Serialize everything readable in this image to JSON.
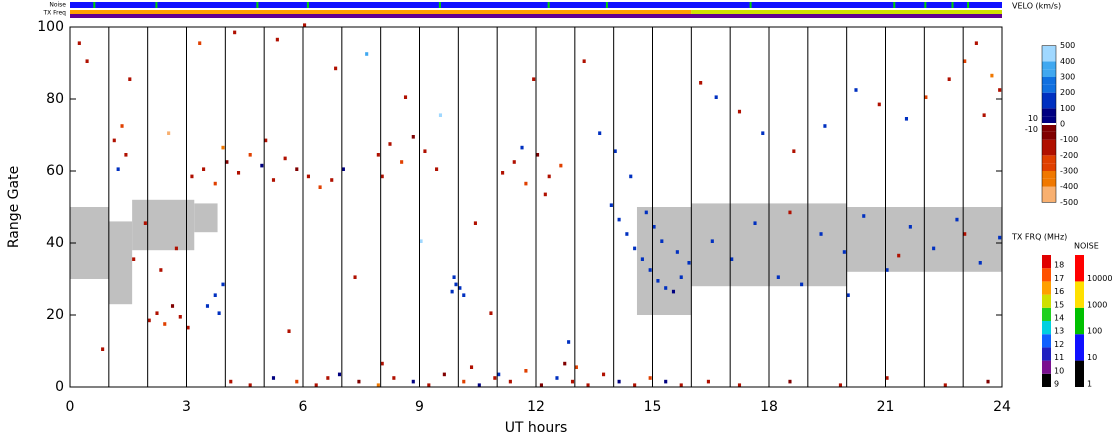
{
  "chart_data": {
    "type": "range-time",
    "xlabel": "UT hours",
    "ylabel": "Range Gate",
    "xlim": [
      0,
      24
    ],
    "ylim": [
      0,
      100
    ],
    "xticks": [
      0,
      3,
      6,
      9,
      12,
      15,
      18,
      21,
      24
    ],
    "yticks": [
      0,
      20,
      40,
      60,
      80,
      100
    ],
    "vlines": [
      1,
      2,
      3,
      4,
      5,
      6,
      7,
      8,
      9,
      10,
      11,
      12,
      13,
      14,
      15,
      16,
      17,
      18,
      19,
      20,
      21,
      22,
      23
    ],
    "ground_scatter_color": "#c0c0c0",
    "ground_scatter": [
      {
        "x": [
          0,
          1.0
        ],
        "y": [
          30,
          50
        ]
      },
      {
        "x": [
          1.0,
          1.6
        ],
        "y": [
          23,
          46
        ]
      },
      {
        "x": [
          1.6,
          3.2
        ],
        "y": [
          38,
          52
        ]
      },
      {
        "x": [
          3.2,
          3.8
        ],
        "y": [
          43,
          51
        ]
      },
      {
        "x": [
          14.6,
          16
        ],
        "y": [
          20,
          50
        ]
      },
      {
        "x": [
          16,
          20
        ],
        "y": [
          28,
          51
        ]
      },
      {
        "x": [
          20,
          24
        ],
        "y": [
          32,
          50
        ]
      }
    ],
    "cells": [
      [
        4.1,
        1,
        -150
      ],
      [
        4.6,
        0,
        -100
      ],
      [
        5.2,
        2,
        80
      ],
      [
        5.8,
        1,
        -200
      ],
      [
        6.3,
        0,
        -120
      ],
      [
        6.9,
        3,
        60
      ],
      [
        7.4,
        1,
        -90
      ],
      [
        7.9,
        0,
        -300
      ],
      [
        8.3,
        2,
        -110
      ],
      [
        8.8,
        1,
        90
      ],
      [
        9.2,
        0,
        -150
      ],
      [
        9.6,
        3,
        -80
      ],
      [
        10.1,
        1,
        -200
      ],
      [
        10.5,
        0,
        70
      ],
      [
        10.9,
        2,
        -130
      ],
      [
        11.3,
        1,
        -100
      ],
      [
        11.7,
        4,
        -250
      ],
      [
        12.1,
        0,
        -90
      ],
      [
        12.5,
        2,
        100
      ],
      [
        12.9,
        1,
        -140
      ],
      [
        13.3,
        0,
        -110
      ],
      [
        13.7,
        3,
        -180
      ],
      [
        14.1,
        1,
        80
      ],
      [
        14.5,
        0,
        -120
      ],
      [
        14.9,
        2,
        -200
      ],
      [
        15.3,
        1,
        90
      ],
      [
        15.7,
        0,
        -100
      ],
      [
        16.4,
        1,
        -150
      ],
      [
        17.2,
        0,
        -120
      ],
      [
        18.5,
        1,
        -90
      ],
      [
        19.8,
        0,
        -130
      ],
      [
        21.0,
        2,
        -100
      ],
      [
        22.5,
        0,
        -110
      ],
      [
        23.6,
        1,
        -90
      ],
      [
        8.0,
        6,
        -120
      ],
      [
        10.3,
        5,
        -160
      ],
      [
        12.7,
        6,
        -90
      ],
      [
        6.6,
        2,
        -140
      ],
      [
        11.0,
        3,
        120
      ],
      [
        13.0,
        5,
        -210
      ],
      [
        3.1,
        58,
        -150
      ],
      [
        3.4,
        60,
        -100
      ],
      [
        3.7,
        56,
        -200
      ],
      [
        4.0,
        62,
        -90
      ],
      [
        4.3,
        59,
        -130
      ],
      [
        4.6,
        64,
        -250
      ],
      [
        4.9,
        61,
        80
      ],
      [
        5.2,
        57,
        -110
      ],
      [
        5.5,
        63,
        -160
      ],
      [
        5.8,
        60,
        -90
      ],
      [
        6.1,
        58,
        -140
      ],
      [
        6.4,
        55,
        -200
      ],
      [
        6.7,
        57,
        -100
      ],
      [
        7.0,
        60,
        60
      ],
      [
        3.9,
        66,
        -300
      ],
      [
        5.0,
        68,
        -120
      ],
      [
        7.9,
        64,
        -150
      ],
      [
        8.2,
        67,
        -100
      ],
      [
        8.5,
        62,
        -200
      ],
      [
        8.8,
        69,
        -90
      ],
      [
        9.1,
        65,
        -130
      ],
      [
        9.4,
        60,
        -180
      ],
      [
        8.0,
        58,
        -120
      ],
      [
        11.1,
        59,
        -150
      ],
      [
        11.4,
        62,
        -100
      ],
      [
        11.7,
        56,
        -200
      ],
      [
        12.0,
        64,
        -90
      ],
      [
        12.3,
        58,
        -130
      ],
      [
        12.6,
        61,
        -250
      ],
      [
        11.6,
        66,
        110
      ],
      [
        12.2,
        53,
        -160
      ],
      [
        13.9,
        50,
        150
      ],
      [
        14.1,
        46,
        120
      ],
      [
        14.3,
        42,
        180
      ],
      [
        14.5,
        38,
        130
      ],
      [
        14.7,
        35,
        100
      ],
      [
        14.9,
        32,
        160
      ],
      [
        15.1,
        29,
        140
      ],
      [
        15.3,
        27,
        120
      ],
      [
        15.5,
        26,
        90
      ],
      [
        15.7,
        30,
        150
      ],
      [
        15.9,
        34,
        130
      ],
      [
        14.0,
        65,
        110
      ],
      [
        14.4,
        58,
        140
      ],
      [
        14.8,
        48,
        170
      ],
      [
        15.2,
        40,
        120
      ],
      [
        15.6,
        37,
        100
      ],
      [
        15.0,
        44,
        130
      ],
      [
        9.8,
        26,
        140
      ],
      [
        9.9,
        28,
        160
      ],
      [
        10.0,
        27,
        120
      ],
      [
        10.1,
        25,
        150
      ],
      [
        9.85,
        30,
        110
      ],
      [
        2.0,
        18,
        -150
      ],
      [
        2.2,
        20,
        -120
      ],
      [
        2.4,
        17,
        -200
      ],
      [
        2.6,
        22,
        -90
      ],
      [
        2.8,
        19,
        -130
      ],
      [
        3.0,
        16,
        -180
      ],
      [
        1.6,
        35,
        -140
      ],
      [
        1.9,
        45,
        -120
      ],
      [
        2.3,
        32,
        -160
      ],
      [
        2.7,
        38,
        -100
      ],
      [
        3.5,
        22,
        140
      ],
      [
        3.7,
        25,
        120
      ],
      [
        3.9,
        28,
        160
      ],
      [
        3.8,
        20,
        110
      ],
      [
        1.1,
        68,
        -150
      ],
      [
        1.3,
        72,
        -200
      ],
      [
        1.4,
        64,
        -120
      ],
      [
        1.2,
        60,
        110
      ],
      [
        0.2,
        95,
        -130
      ],
      [
        0.4,
        90,
        -180
      ],
      [
        16.5,
        40,
        130
      ],
      [
        17.0,
        35,
        110
      ],
      [
        17.6,
        45,
        150
      ],
      [
        18.2,
        30,
        120
      ],
      [
        18.8,
        28,
        160
      ],
      [
        19.3,
        42,
        100
      ],
      [
        19.9,
        37,
        140
      ],
      [
        20.4,
        47,
        130
      ],
      [
        21.0,
        32,
        110
      ],
      [
        21.6,
        44,
        150
      ],
      [
        22.2,
        38,
        120
      ],
      [
        22.8,
        46,
        100
      ],
      [
        23.4,
        34,
        140
      ],
      [
        23.9,
        41,
        130
      ],
      [
        20.0,
        25,
        120
      ],
      [
        18.5,
        48,
        -150
      ],
      [
        21.3,
        36,
        -120
      ],
      [
        23.0,
        42,
        -110
      ],
      [
        16.2,
        84,
        -130
      ],
      [
        16.6,
        80,
        120
      ],
      [
        17.2,
        76,
        -150
      ],
      [
        17.8,
        70,
        110
      ],
      [
        18.6,
        65,
        -120
      ],
      [
        19.4,
        72,
        140
      ],
      [
        20.2,
        82,
        130
      ],
      [
        20.8,
        78,
        -100
      ],
      [
        21.5,
        74,
        120
      ],
      [
        22.0,
        80,
        -200
      ],
      [
        22.6,
        85,
        -160
      ],
      [
        23.0,
        90,
        -250
      ],
      [
        23.3,
        95,
        -130
      ],
      [
        23.7,
        86,
        -300
      ],
      [
        23.9,
        82,
        -180
      ],
      [
        23.5,
        75,
        -120
      ],
      [
        0.8,
        10,
        -140
      ],
      [
        1.5,
        85,
        -120
      ],
      [
        3.3,
        95,
        -250
      ],
      [
        4.2,
        98,
        -130
      ],
      [
        5.3,
        96,
        -160
      ],
      [
        6.0,
        100,
        -120
      ],
      [
        6.8,
        88,
        -130
      ],
      [
        7.6,
        92,
        300
      ],
      [
        8.6,
        80,
        -140
      ],
      [
        9.5,
        75,
        400
      ],
      [
        10.4,
        45,
        -120
      ],
      [
        10.8,
        20,
        -150
      ],
      [
        11.9,
        85,
        -160
      ],
      [
        13.2,
        90,
        -140
      ],
      [
        13.6,
        70,
        120
      ],
      [
        7.3,
        30,
        -150
      ],
      [
        5.6,
        15,
        -130
      ],
      [
        12.8,
        12,
        120
      ],
      [
        9.0,
        40,
        450
      ],
      [
        2.5,
        70,
        -450
      ]
    ],
    "velo_scale": {
      "label": "VELO (km/s)",
      "lim": [
        -600,
        600
      ],
      "ticks": [
        500,
        400,
        300,
        200,
        100,
        10,
        0,
        -10,
        -100,
        -200,
        -300,
        -400,
        -500
      ]
    },
    "tx_freq_scale": {
      "label": "TX FRQ (MHz)",
      "ticks": [
        9,
        10,
        11,
        12,
        13,
        14,
        15,
        16,
        17,
        18
      ],
      "colors": [
        "#000000",
        "#7a1090",
        "#2020c0",
        "#1060ff",
        "#00d0e0",
        "#20d020",
        "#d0e000",
        "#ffa000",
        "#ff5000",
        "#e00000"
      ]
    },
    "noise_scale": {
      "label": "NOISE",
      "ticks": [
        1,
        10,
        100,
        1000,
        10000
      ],
      "colors": [
        "#000000",
        "#1010ff",
        "#00c000",
        "#ffe000",
        "#ff0000"
      ]
    },
    "noise_bar": {
      "label": "Noise",
      "color": "#1010ff",
      "spike_color": "#00d000",
      "spikes": [
        0.6,
        2.2,
        4.8,
        6.1,
        9.5,
        12.3,
        13.8,
        17.5,
        21.2,
        22.0,
        22.7,
        23.1
      ]
    },
    "tx_freq_bar": {
      "label": "TX Freq",
      "segments": [
        {
          "x": [
            0,
            16
          ],
          "freq": 16
        },
        {
          "x": [
            16,
            24
          ],
          "freq": 15
        }
      ]
    }
  }
}
